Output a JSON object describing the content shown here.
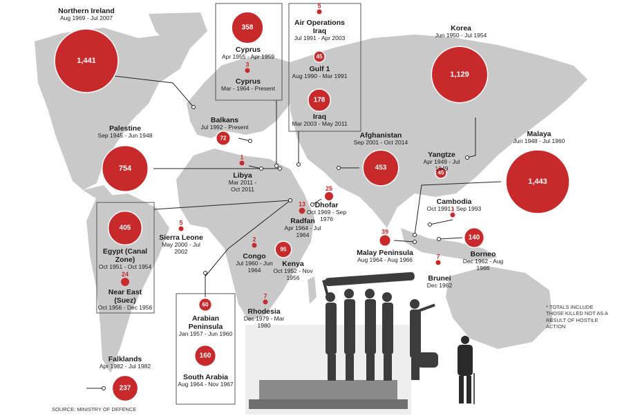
{
  "colors": {
    "land": "#c9c9c9",
    "bubble": "#c8292b",
    "ocean": "#ffffff",
    "line": "#222222"
  },
  "source": "SOURCE: MINISTRY OF DEFENCE",
  "note": "* TOTALS INCLUDE THOSE KILLED NOT AS A RESULT OF HOSTILE ACTION",
  "conflicts": [
    {
      "id": "northern-ireland",
      "name": "Northern Ireland",
      "dates": "Aug 1969 - Jul 2007",
      "value": 1441,
      "label": "1,441"
    },
    {
      "id": "cyprus-1955",
      "name": "Cyprus",
      "dates": "Apr 1955 - Apr 1959",
      "value": 358,
      "label": "358"
    },
    {
      "id": "cyprus-1964",
      "name": "Cyprus",
      "dates": "Mar - 1964 - Present",
      "value": 3,
      "label": "3"
    },
    {
      "id": "air-ops-iraq",
      "name": "Air Operations Iraq",
      "dates": "Jul 1991 - Apr 2003",
      "value": 5,
      "label": "5"
    },
    {
      "id": "gulf-1",
      "name": "Gulf 1",
      "dates": "Aug 1990 - Mar 1991",
      "value": 45,
      "label": "45"
    },
    {
      "id": "iraq",
      "name": "Iraq",
      "dates": "Mar 2003 - May 2011",
      "value": 178,
      "label": "178"
    },
    {
      "id": "korea",
      "name": "Korea",
      "dates": "Jun 1950 - Jul 1954",
      "value": 1129,
      "label": "1,129"
    },
    {
      "id": "balkans",
      "name": "Balkans",
      "dates": "Jul 1992 - Present",
      "value": 72,
      "label": "72"
    },
    {
      "id": "palestine",
      "name": "Palestine",
      "dates": "Sep 1945 - Jun 1948",
      "value": 754,
      "label": "754"
    },
    {
      "id": "afghanistan",
      "name": "Afghanistan",
      "dates": "Sep 2001 - Oct 2014",
      "value": 453,
      "label": "453"
    },
    {
      "id": "yangtze",
      "name": "Yangtze",
      "dates": "Apr 1949 - Jul 1949",
      "value": 45,
      "label": "45"
    },
    {
      "id": "malaya",
      "name": "Malaya",
      "dates": "Jun 1948 - Jul 1960",
      "value": 1443,
      "label": "1,443"
    },
    {
      "id": "libya",
      "name": "Libya",
      "dates": "Mar 2011 - Oct 2011",
      "value": 1,
      "label": "1"
    },
    {
      "id": "dhofar",
      "name": "Dhofar",
      "dates": "Oct 1969 - Sep 1976",
      "value": 25,
      "label": "25"
    },
    {
      "id": "cambodia",
      "name": "Cambodia",
      "dates": "Oct 1991 - Sep 1993",
      "value": 1,
      "label": "1"
    },
    {
      "id": "egypt",
      "name": "Egypt (Canal Zone)",
      "dates": "Oct 1951 - Oct 1954",
      "value": 405,
      "label": "405"
    },
    {
      "id": "sierra-leone",
      "name": "Sierra Leone",
      "dates": "May 2000 - Jul 2002",
      "value": 5,
      "label": "5"
    },
    {
      "id": "radfan",
      "name": "Radfan",
      "dates": "Apr 1964 - Jul 1964",
      "value": 13,
      "label": "13"
    },
    {
      "id": "malay-peninsula",
      "name": "Malay Peninsula",
      "dates": "Aug 1964 - Aug 1966",
      "value": 39,
      "label": "39"
    },
    {
      "id": "borneo",
      "name": "Borneo",
      "dates": "Dec 1962 - Aug 1966",
      "value": 140,
      "label": "140"
    },
    {
      "id": "congo",
      "name": "Congo",
      "dates": "Jul 1960 - Jun 1964",
      "value": 2,
      "label": "2"
    },
    {
      "id": "kenya",
      "name": "Kenya",
      "dates": "Oct 1952 - Nov 1956",
      "value": 95,
      "label": "95"
    },
    {
      "id": "near-east",
      "name": "Near East (Suez)",
      "dates": "Oct 1956 - Dec 1956",
      "value": 24,
      "label": "24"
    },
    {
      "id": "brunei",
      "name": "Brunei",
      "dates": "Dec 1962",
      "value": 7,
      "label": "7"
    },
    {
      "id": "rhodesia",
      "name": "Rhodesia",
      "dates": "Dec 1979 - Mar 1980",
      "value": 7,
      "label": "7"
    },
    {
      "id": "arabian-peninsula",
      "name": "Arabian Peninsula",
      "dates": "Jan 1957 - Jun 1960",
      "value": 60,
      "label": "60"
    },
    {
      "id": "south-arabia",
      "name": "South Arabia",
      "dates": "Aug 1964 - Nov 1967",
      "value": 160,
      "label": "160"
    },
    {
      "id": "falklands",
      "name": "Falklands",
      "dates": "Apr 1982 - Jul 1982",
      "value": 237,
      "label": "237"
    }
  ]
}
